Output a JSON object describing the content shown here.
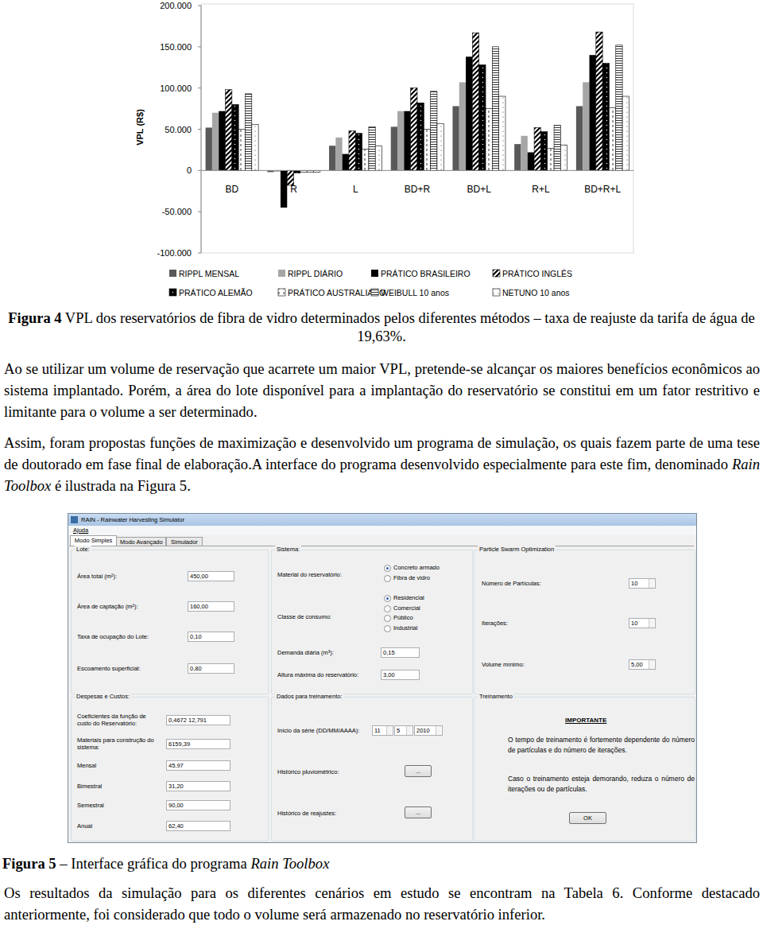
{
  "chart_data": {
    "type": "bar",
    "y_label": "VPL (R$)",
    "categories": [
      "BD",
      "R",
      "L",
      "BD+R",
      "BD+L",
      "R+L",
      "BD+R+L"
    ],
    "ylim": [
      -100000,
      200000
    ],
    "yticks": [
      {
        "value": -100000,
        "label": "-100.000"
      },
      {
        "value": -50000,
        "label": "-50.000"
      },
      0,
      {
        "value": 50000,
        "label": "50.000"
      },
      {
        "value": 100000,
        "label": "100.000"
      },
      {
        "value": 150000,
        "label": "150.000"
      },
      {
        "value": 200000,
        "label": "200.000"
      }
    ],
    "grid": false,
    "legend": "bottom",
    "series": [
      {
        "name": "RIPPL MENSAL",
        "color": "#595959",
        "values": [
          52000,
          -2000,
          30000,
          53000,
          78000,
          32000,
          78000
        ]
      },
      {
        "name": "RIPPL DIÁRIO",
        "color": "#a6a6a6",
        "values": [
          70000,
          -1500,
          40000,
          72000,
          107000,
          42000,
          107000
        ]
      },
      {
        "name": "PRÁTICO BRASILEIRO",
        "color": "#000000",
        "values": [
          72000,
          -45000,
          20000,
          72000,
          138000,
          22000,
          140000
        ]
      },
      {
        "name": "PRÁTICO INGLÊS",
        "color": "#000000",
        "values": [
          98000,
          -18000,
          48000,
          100000,
          167000,
          52000,
          168000
        ]
      },
      {
        "name": "PRÁTICO ALEMÃO",
        "color": "#000000",
        "values": [
          80000,
          -3000,
          45000,
          82000,
          128000,
          47000,
          130000
        ]
      },
      {
        "name": "PRÁTICO AUSTRALIANO",
        "color": "#000000",
        "values": [
          50000,
          -2000,
          26000,
          50000,
          75000,
          27000,
          76000
        ]
      },
      {
        "name": "WEIBULL 10 anos",
        "color": "#000000",
        "values": [
          93000,
          -2000,
          53000,
          96000,
          150000,
          55000,
          152000
        ]
      },
      {
        "name": "NETUNO 10 anos",
        "color": "#000000",
        "values": [
          56000,
          -2000,
          30000,
          57000,
          90000,
          31000,
          90000
        ]
      }
    ]
  },
  "figure4_caption": {
    "label": "Figura 4",
    "text": "VPL dos reservatórios de fibra de vidro determinados pelos diferentes métodos – taxa de reajuste da tarifa de água de 19,63%."
  },
  "paragraph_1": "Ao se utilizar um volume de reservação que acarrete um maior VPL, pretende-se alcançar os maiores benefícios econômicos ao sistema implantado. Porém, a área do lote disponível para a implantação do reservatório se constitui em um fator restritivo e limitante para o volume a ser determinado.",
  "paragraph_2": {
    "text_before": "Assim, foram propostas funções de maximização e desenvolvido um programa de simulação, os quais fazem parte de uma tese de doutorado em fase final de elaboração.A interface do programa desenvolvido especialmente para este fim, denominado",
    "italic": "Rain Toolbox",
    "text_after": "é ilustrada na Figura 5."
  },
  "screenshot": {
    "window_title": "RAIN - Rainwater Harvesting Simulator",
    "menu": [
      "Ajuda"
    ],
    "tabs": [
      "Modo Simples",
      "Modo Avançado",
      "Simulador"
    ],
    "lote": {
      "title": "Lote:",
      "fields": [
        {
          "label": "Área total (m²):",
          "value": "450,00"
        },
        {
          "label": "Área de captação (m²):",
          "value": "160,00"
        },
        {
          "label": "Taxa de ocupação do Lote:",
          "value": "0,10"
        },
        {
          "label": "Escoamento superficial:",
          "value": "0,80"
        }
      ]
    },
    "sistema": {
      "title": "Sistema:",
      "material_label": "Material do reservatório:",
      "material_options": [
        "Concreto armado",
        "Fibra de vidro"
      ],
      "material_selected": 0,
      "consumo_label": "Classe de consumo:",
      "consumo_options": [
        "Residencial",
        "Comercial",
        "Público",
        "Industrial"
      ],
      "consumo_selected": 0,
      "fields": [
        {
          "label": "Demanda diária (m³):",
          "value": "0,15"
        },
        {
          "label": "Altura máxima do reservatório:",
          "value": "3,00"
        }
      ]
    },
    "pso": {
      "title": "Particle Swarm Optimization",
      "fields": [
        {
          "label": "Número de Partículas:",
          "value": "10"
        },
        {
          "label": "Iterações:",
          "value": "10"
        },
        {
          "label": "Volume mínimo:",
          "value": "5,00"
        }
      ]
    },
    "despesas": {
      "title": "Despesas e Custos:",
      "fields": [
        {
          "label": "Coeficientes da função de custo do Reservatório:",
          "value": "0,4672 12,791"
        },
        {
          "label": "Materiais para construção do sistema:",
          "value": "6159,39"
        },
        {
          "label": "Mensal",
          "value": "45,97"
        },
        {
          "label": "Bimestral",
          "value": "31,20"
        },
        {
          "label": "Semestral",
          "value": "90,00"
        },
        {
          "label": "Anual",
          "value": "62,40"
        }
      ]
    },
    "dados": {
      "title": "Dados para treinamento:",
      "date_label": "Início da série (DD/MM/AAAA):",
      "date_values": [
        "11",
        "5",
        "2010"
      ],
      "buttons": [
        {
          "label": "Histórico pluviométrico:",
          "text": "..."
        },
        {
          "label": "Histórico de reajustes:",
          "text": "..."
        }
      ]
    },
    "treinamento": {
      "title": "Treinamento",
      "notice_title": "IMPORTANTE",
      "notice_paragraphs": [
        "O tempo de treinamento é fortemente dependente do número de partículas e do número de iterações.",
        "Caso o treinamento esteja demorando, reduza o número de iterações ou de partículas."
      ],
      "button": "OK"
    }
  },
  "figure5_caption": {
    "label": "Figura 5",
    "text": "– Interface gráfica do programa",
    "italic": "Rain Toolbox"
  },
  "paragraph_3": "Os resultados da simulação para os diferentes cenários em estudo se encontram na Tabela 6. Conforme destacado anteriormente, foi considerado que todo o volume será armazenado no reservatório inferior."
}
